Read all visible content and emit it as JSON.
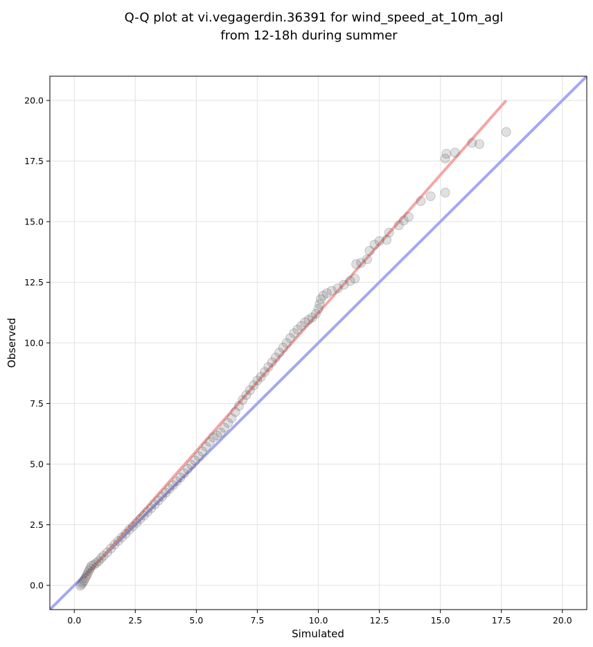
{
  "chart_data": {
    "type": "scatter",
    "title_line1": "Q-Q plot at vi.vegagerdin.36391 for wind_speed_at_10m_agl",
    "title_line2": "from 12-18h during summer",
    "xlabel": "Simulated",
    "ylabel": "Observed",
    "xlim": [
      -1.0,
      21.0
    ],
    "ylim": [
      -1.0,
      21.0
    ],
    "grid": true,
    "xticks": [
      0.0,
      2.5,
      5.0,
      7.5,
      10.0,
      12.5,
      15.0,
      17.5,
      20.0
    ],
    "xtick_labels": [
      "0.0",
      "2.5",
      "5.0",
      "7.5",
      "10.0",
      "12.5",
      "15.0",
      "17.5",
      "20.0"
    ],
    "yticks": [
      0.0,
      2.5,
      5.0,
      7.5,
      10.0,
      12.5,
      15.0,
      17.5,
      20.0
    ],
    "ytick_labels": [
      "0.0",
      "2.5",
      "5.0",
      "7.5",
      "10.0",
      "12.5",
      "15.0",
      "17.5",
      "20.0"
    ],
    "reference_line": {
      "x": [
        -1.0,
        21.0
      ],
      "y": [
        -1.0,
        21.0
      ],
      "color": "#a6a6f2"
    },
    "fit_line": {
      "x": [
        0.4,
        17.7
      ],
      "y": [
        0.3,
        20.0
      ],
      "color": "#f4a6a6"
    },
    "point_color": "#555555",
    "points": [
      [
        0.25,
        -0.02
      ],
      [
        0.3,
        0.05
      ],
      [
        0.35,
        0.12
      ],
      [
        0.4,
        0.2
      ],
      [
        0.45,
        0.3
      ],
      [
        0.5,
        0.4
      ],
      [
        0.55,
        0.5
      ],
      [
        0.6,
        0.6
      ],
      [
        0.65,
        0.7
      ],
      [
        0.7,
        0.8
      ],
      [
        0.8,
        0.85
      ],
      [
        0.9,
        0.92
      ],
      [
        1.0,
        1.0
      ],
      [
        1.1,
        1.12
      ],
      [
        1.2,
        1.22
      ],
      [
        1.35,
        1.36
      ],
      [
        1.5,
        1.52
      ],
      [
        1.65,
        1.68
      ],
      [
        1.8,
        1.83
      ],
      [
        1.95,
        1.98
      ],
      [
        2.1,
        2.13
      ],
      [
        2.25,
        2.29
      ],
      [
        2.4,
        2.43
      ],
      [
        2.55,
        2.58
      ],
      [
        2.7,
        2.74
      ],
      [
        2.85,
        2.88
      ],
      [
        3.0,
        3.03
      ],
      [
        3.15,
        3.18
      ],
      [
        3.3,
        3.34
      ],
      [
        3.45,
        3.5
      ],
      [
        3.6,
        3.66
      ],
      [
        3.75,
        3.82
      ],
      [
        3.9,
        3.98
      ],
      [
        4.05,
        4.13
      ],
      [
        4.2,
        4.29
      ],
      [
        4.35,
        4.45
      ],
      [
        4.5,
        4.62
      ],
      [
        4.65,
        4.8
      ],
      [
        4.8,
        4.97
      ],
      [
        4.95,
        5.15
      ],
      [
        5.1,
        5.33
      ],
      [
        5.25,
        5.52
      ],
      [
        5.4,
        5.72
      ],
      [
        5.55,
        5.92
      ],
      [
        5.7,
        6.1
      ],
      [
        5.85,
        6.18
      ],
      [
        6.0,
        6.3
      ],
      [
        6.15,
        6.5
      ],
      [
        6.3,
        6.7
      ],
      [
        6.45,
        6.9
      ],
      [
        6.6,
        7.15
      ],
      [
        6.75,
        7.4
      ],
      [
        6.9,
        7.65
      ],
      [
        7.05,
        7.85
      ],
      [
        7.2,
        8.05
      ],
      [
        7.35,
        8.25
      ],
      [
        7.5,
        8.45
      ],
      [
        7.65,
        8.6
      ],
      [
        7.8,
        8.8
      ],
      [
        7.95,
        9.0
      ],
      [
        8.1,
        9.2
      ],
      [
        8.25,
        9.4
      ],
      [
        8.4,
        9.6
      ],
      [
        8.55,
        9.8
      ],
      [
        8.7,
        10.0
      ],
      [
        8.85,
        10.2
      ],
      [
        9.0,
        10.4
      ],
      [
        9.15,
        10.55
      ],
      [
        9.3,
        10.7
      ],
      [
        9.45,
        10.85
      ],
      [
        9.6,
        10.95
      ],
      [
        9.75,
        11.05
      ],
      [
        9.9,
        11.2
      ],
      [
        10.0,
        11.4
      ],
      [
        10.05,
        11.6
      ],
      [
        10.1,
        11.8
      ],
      [
        10.2,
        11.95
      ],
      [
        10.35,
        12.05
      ],
      [
        10.55,
        12.15
      ],
      [
        10.8,
        12.25
      ],
      [
        11.05,
        12.4
      ],
      [
        11.3,
        12.55
      ],
      [
        11.5,
        12.65
      ],
      [
        11.55,
        13.25
      ],
      [
        11.75,
        13.3
      ],
      [
        12.0,
        13.45
      ],
      [
        12.1,
        13.8
      ],
      [
        12.3,
        14.05
      ],
      [
        12.5,
        14.2
      ],
      [
        12.8,
        14.25
      ],
      [
        12.9,
        14.55
      ],
      [
        13.3,
        14.85
      ],
      [
        13.5,
        15.05
      ],
      [
        13.7,
        15.2
      ],
      [
        14.2,
        15.85
      ],
      [
        14.6,
        16.05
      ],
      [
        15.2,
        16.2
      ],
      [
        15.2,
        17.6
      ],
      [
        15.25,
        17.8
      ],
      [
        15.6,
        17.85
      ],
      [
        16.3,
        18.25
      ],
      [
        16.6,
        18.2
      ],
      [
        17.7,
        18.7
      ]
    ]
  }
}
